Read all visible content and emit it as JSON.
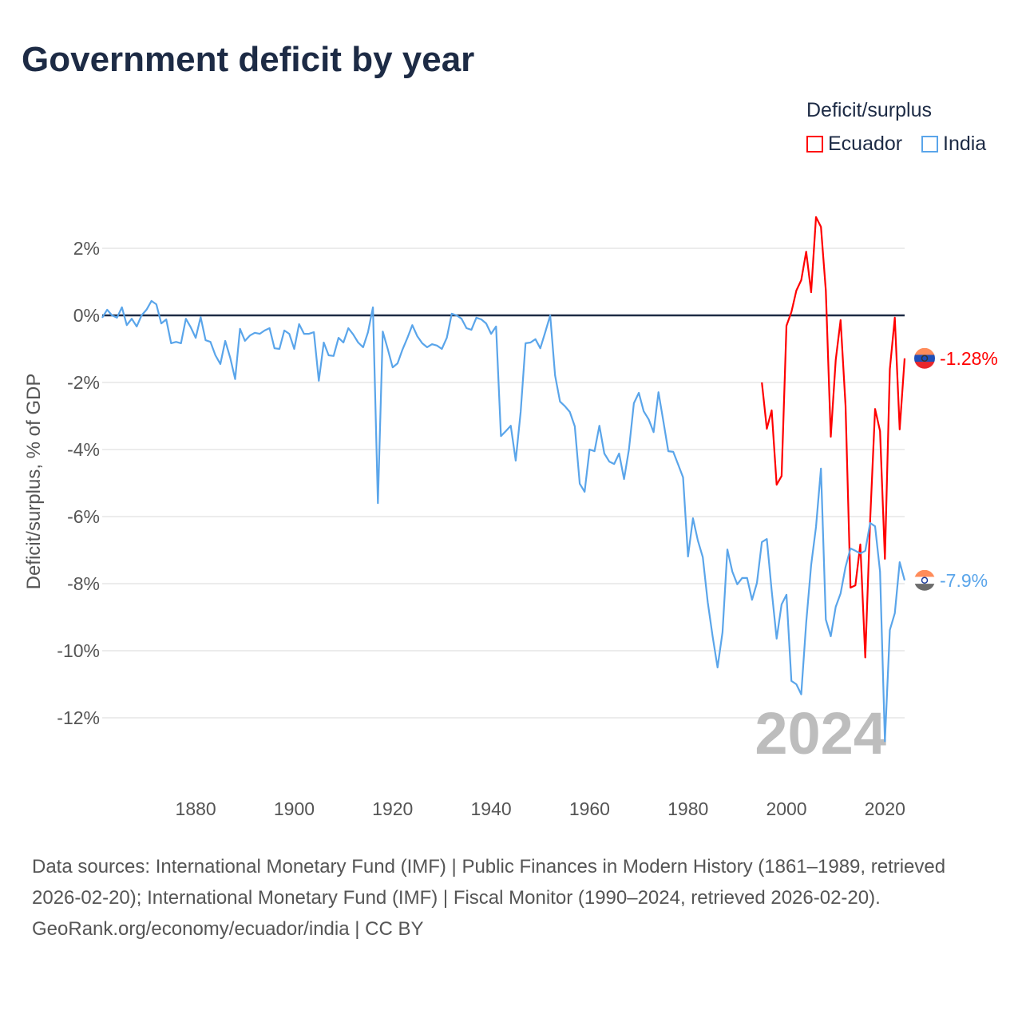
{
  "title": "Government deficit by year",
  "legend": {
    "title": "Deficit/surplus",
    "items": [
      {
        "label": "Ecuador",
        "color": "#ff0000"
      },
      {
        "label": "India",
        "color": "#5aa5ea"
      }
    ]
  },
  "year_watermark": "2024",
  "footer": {
    "sources": "Data sources: International Monetary Fund (IMF) | Public Finances in Modern History (1861–1989, retrieved 2026-02-20); International Monetary Fund (IMF) | Fiscal Monitor (1990–2024, retrieved 2026-02-20).",
    "credit": "GeoRank.org/economy/ecuador/india | CC BY"
  },
  "chart_data": {
    "type": "line",
    "title": "Government deficit by year",
    "xlabel": "",
    "ylabel": "Deficit/surplus, % of GDP",
    "xlim": [
      1861,
      2024
    ],
    "ylim": [
      -13.5,
      3.5
    ],
    "x_ticks": [
      1880,
      1900,
      1920,
      1940,
      1960,
      1980,
      2000,
      2020
    ],
    "y_ticks": [
      2,
      0,
      -2,
      -4,
      -6,
      -8,
      -10,
      -12
    ],
    "y_tick_labels": [
      "2%",
      "0%",
      "-2%",
      "-4%",
      "-6%",
      "-8%",
      "-10%",
      "-12%"
    ],
    "grid": true,
    "legend_position": "top-right",
    "series": [
      {
        "name": "Ecuador",
        "color": "#ff0000",
        "end_label": "-1.28%",
        "x_start": 1995,
        "values": [
          -2.0,
          -3.38,
          -2.83,
          -5.05,
          -4.79,
          -0.31,
          0.1,
          0.74,
          1.05,
          1.9,
          0.69,
          2.93,
          2.64,
          0.74,
          -3.62,
          -1.33,
          -0.14,
          -2.69,
          -8.12,
          -8.05,
          -6.83,
          -10.2,
          -6.12,
          -2.79,
          -3.45,
          -7.26,
          -1.6,
          -0.07,
          -3.4,
          -1.28
        ]
      },
      {
        "name": "India",
        "color": "#5aa5ea",
        "end_label": "-7.9%",
        "x_start": 1861,
        "values": [
          -0.07,
          0.17,
          0,
          -0.07,
          0.24,
          -0.29,
          -0.1,
          -0.33,
          0,
          0.17,
          0.43,
          0.33,
          -0.24,
          -0.12,
          -0.83,
          -0.79,
          -0.83,
          -0.1,
          -0.36,
          -0.67,
          -0.05,
          -0.74,
          -0.79,
          -1.19,
          -1.45,
          -0.76,
          -1.26,
          -1.9,
          -0.4,
          -0.76,
          -0.6,
          -0.52,
          -0.55,
          -0.45,
          -0.38,
          -0.98,
          -1.0,
          -0.45,
          -0.55,
          -1.0,
          -0.26,
          -0.55,
          -0.55,
          -0.5,
          -1.95,
          -0.81,
          -1.19,
          -1.21,
          -0.67,
          -0.81,
          -0.38,
          -0.57,
          -0.81,
          -0.95,
          -0.5,
          0.24,
          -5.6,
          -0.48,
          -1.0,
          -1.55,
          -1.43,
          -1.02,
          -0.67,
          -0.29,
          -0.62,
          -0.83,
          -0.95,
          -0.86,
          -0.9,
          -1.0,
          -0.67,
          0.05,
          0,
          -0.1,
          -0.38,
          -0.43,
          -0.07,
          -0.12,
          -0.24,
          -0.55,
          -0.33,
          -3.6,
          -3.45,
          -3.29,
          -4.33,
          -2.88,
          -0.83,
          -0.81,
          -0.71,
          -0.98,
          -0.5,
          0,
          -1.79,
          -2.57,
          -2.71,
          -2.88,
          -3.31,
          -5.02,
          -5.26,
          -4.0,
          -4.05,
          -3.29,
          -4.12,
          -4.36,
          -4.43,
          -4.12,
          -4.88,
          -4.0,
          -2.62,
          -2.31,
          -2.86,
          -3.1,
          -3.48,
          -2.29,
          -3.17,
          -4.05,
          -4.07,
          -4.45,
          -4.83,
          -7.19,
          -6.05,
          -6.71,
          -7.21,
          -8.55,
          -9.57,
          -10.5,
          -9.45,
          -6.98,
          -7.64,
          -8.02,
          -7.83,
          -7.83,
          -8.48,
          -7.98,
          -6.76,
          -6.67,
          -8.21,
          -9.64,
          -8.62,
          -8.33,
          -10.9,
          -11.0,
          -11.3,
          -9.17,
          -7.45,
          -6.31,
          -4.57,
          -9.07,
          -9.57,
          -8.69,
          -8.29,
          -7.5,
          -6.95,
          -7.02,
          -7.1,
          -7.02,
          -6.19,
          -6.29,
          -7.64,
          -12.7,
          -9.38,
          -8.88,
          -7.36,
          -7.9
        ]
      }
    ]
  }
}
